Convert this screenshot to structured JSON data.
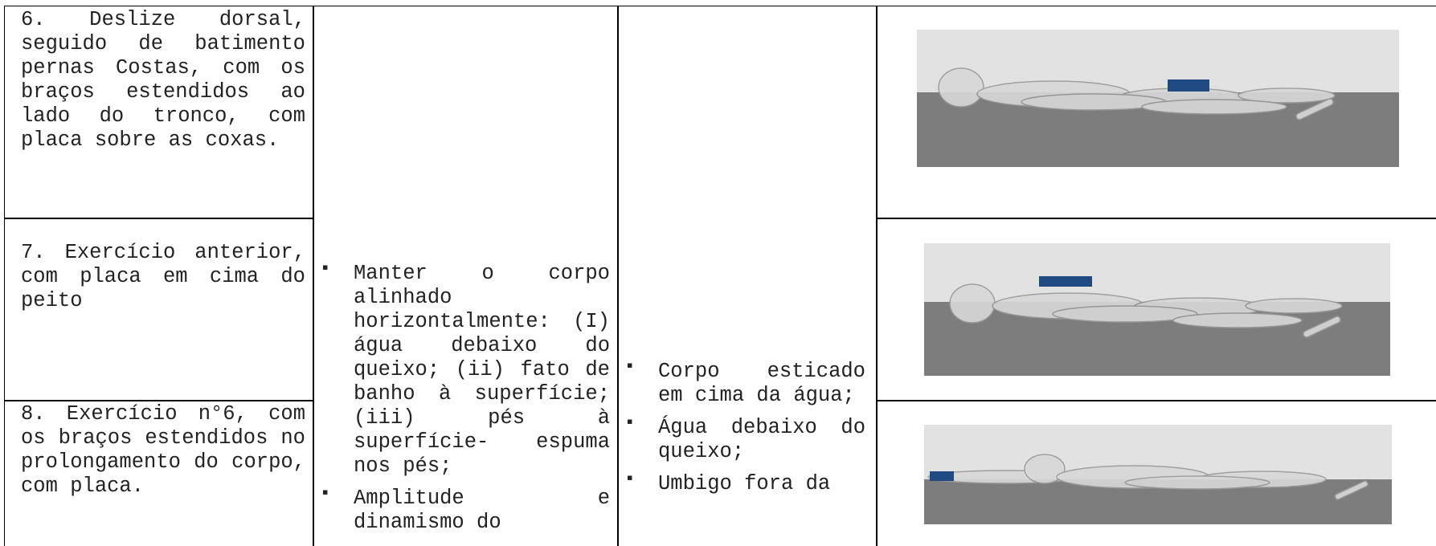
{
  "table": {
    "exercises": [
      "6. Deslize dorsal, seguido de batimento pernas Costas, com os braços estendidos ao lado do tronco, com placa sobre as coxas.",
      "7. Exercício anterior, com placa em cima do peito",
      "8. Exercício n°6, com os braços estendidos no prolongamento do corpo, com placa."
    ],
    "criteria": [
      "Manter o corpo alinhado horizontalmente: (I) água debaixo do queixo; (ii) fato de banho à superfície; (iii) pés à superfície- espuma nos pés;",
      "Amplitude e dinamismo do"
    ],
    "errors": [
      "Corpo esticado em cima da água;",
      "Água debaixo do queixo;",
      "Umbigo fora da"
    ]
  }
}
